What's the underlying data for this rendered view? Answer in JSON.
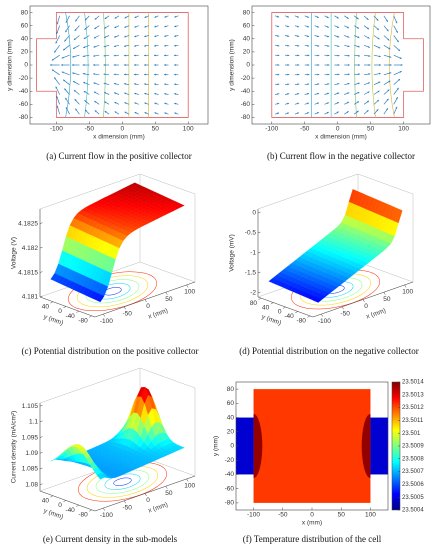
{
  "chart_data": [
    {
      "type": "vector-field",
      "caption": "(a) Current flow in the positive collector",
      "xlabel": "x dimension (mm)",
      "ylabel": "y dimension (mm)",
      "xlim": [
        -140,
        130
      ],
      "ylim": [
        -90,
        90
      ],
      "xticks": [
        -100,
        -50,
        0,
        50,
        100
      ],
      "yticks": [
        -80,
        -60,
        -40,
        -20,
        0,
        20,
        40,
        60,
        80
      ]
    },
    {
      "type": "vector-field",
      "caption": "(b) Current flow in the negative collector",
      "xlabel": "x dimension (mm)",
      "ylabel": "y dimension (mm)",
      "xlim": [
        -130,
        140
      ],
      "ylim": [
        -90,
        90
      ],
      "xticks": [
        -100,
        -50,
        0,
        50,
        100
      ],
      "yticks": [
        -80,
        -60,
        -40,
        -20,
        0,
        20,
        40,
        60,
        80
      ]
    },
    {
      "type": "surface",
      "caption": "(c) Potential distribution on the positive collector",
      "xlabel": "x (mm)",
      "ylabel": "y (mm)",
      "zlabel": "Voltage (V)",
      "xlim": [
        -120,
        120
      ],
      "ylim": [
        -90,
        80
      ],
      "zlim": [
        4.181,
        4.1828
      ],
      "xticks": [
        -100,
        -50,
        0,
        50,
        100
      ],
      "yticks": [
        -80,
        -40,
        0,
        40
      ],
      "zticks": [
        4.181,
        4.1815,
        4.182,
        4.1825
      ]
    },
    {
      "type": "surface",
      "caption": "(d) Potential distribution on the negative collector",
      "xlabel": "x (mm)",
      "ylabel": "y (mm)",
      "zlabel": "Voltage (mV)",
      "xlim": [
        -120,
        120
      ],
      "ylim": [
        -90,
        90
      ],
      "zlim": [
        -2.1,
        0.1
      ],
      "xticks": [
        -100,
        -50,
        0,
        50,
        100
      ],
      "yticks": [
        -80,
        -40,
        0,
        40,
        80
      ],
      "zticks": [
        -2,
        -1.5,
        -1,
        -0.5,
        0
      ]
    },
    {
      "type": "surface",
      "caption": "(e) Current density in the sub-models",
      "xlabel": "x (mm)",
      "ylabel": "y (mm)",
      "zlabel": "Current density (mA/cm²)",
      "xlim": [
        -120,
        120
      ],
      "ylim": [
        -90,
        80
      ],
      "zlim": [
        1.078,
        1.106
      ],
      "xticks": [
        -100,
        -50,
        0,
        50,
        100
      ],
      "yticks": [
        -80,
        -40,
        0,
        40
      ],
      "zticks": [
        1.08,
        1.085,
        1.09,
        1.095,
        1.1,
        1.105
      ]
    },
    {
      "type": "heatmap",
      "caption": "(f) Temperature distribution of the cell",
      "xlabel": "x (mm)",
      "ylabel": "y (mm)",
      "xlim": [
        -130,
        130
      ],
      "ylim": [
        -90,
        90
      ],
      "xticks": [
        -100,
        -50,
        0,
        50,
        100
      ],
      "yticks": [
        -80,
        -60,
        -40,
        -20,
        0,
        20,
        40,
        60,
        80
      ],
      "clim": [
        23.5004,
        23.5014
      ],
      "cticks": [
        23.5004,
        23.5005,
        23.5006,
        23.5007,
        23.5008,
        23.5009,
        23.501,
        23.5011,
        23.5012,
        23.5013,
        23.5014
      ]
    }
  ]
}
